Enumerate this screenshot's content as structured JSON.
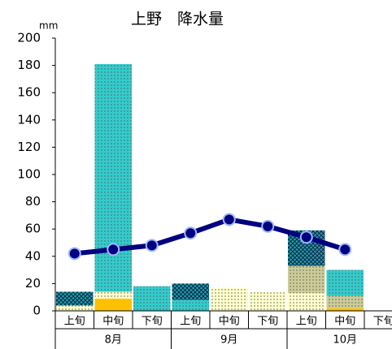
{
  "chart_data": {
    "type": "stacked-bar-line",
    "title": "上野　降水量",
    "y_unit": "mm",
    "categories": [
      "上旬",
      "中旬",
      "下旬",
      "上旬",
      "中旬",
      "下旬",
      "上旬",
      "中旬",
      "下旬"
    ],
    "groups": [
      "8月",
      "9月",
      "10月"
    ],
    "ylim": [
      0,
      200
    ],
    "yticks": [
      0,
      20,
      40,
      60,
      80,
      100,
      120,
      140,
      160,
      180,
      200
    ],
    "series": [
      {
        "color": "#ffc000",
        "pattern": "none",
        "values": [
          null,
          9,
          null,
          null,
          null,
          null,
          null,
          2,
          null
        ]
      },
      {
        "color": "#ffffcc",
        "pattern": "dots",
        "values": [
          4,
          5,
          null,
          null,
          17,
          14,
          13,
          null,
          null
        ]
      },
      {
        "color": "#cccc99",
        "pattern": "dots",
        "values": [
          null,
          null,
          null,
          null,
          null,
          null,
          20,
          9,
          null
        ]
      },
      {
        "color": "#33cccc",
        "pattern": "dots",
        "values": [
          null,
          167,
          18,
          8,
          null,
          null,
          null,
          19,
          null
        ]
      },
      {
        "color": "#1a9f9f",
        "pattern": "cross",
        "values": [
          10,
          null,
          null,
          12,
          null,
          null,
          26,
          null,
          null
        ]
      }
    ],
    "line": {
      "color": "#000080",
      "values": [
        42,
        45,
        48,
        57,
        67,
        62,
        54,
        45,
        null
      ]
    }
  }
}
